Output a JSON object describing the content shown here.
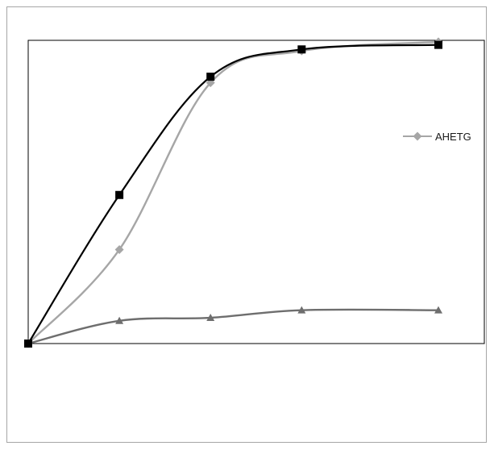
{
  "chart_data": {
    "type": "line",
    "title": "",
    "xlabel": "",
    "ylabel": "",
    "x": [
      0,
      1,
      2,
      3,
      4.5
    ],
    "ylim": [
      0,
      1
    ],
    "smooth": true,
    "grid": false,
    "legend": {
      "placement": "right",
      "entries": [
        "AHETG"
      ]
    },
    "series": [
      {
        "name": "AHETG",
        "marker": "diamond",
        "color": "#a6a6a6",
        "values": [
          0,
          0.31,
          0.86,
          0.965,
          0.995
        ]
      },
      {
        "name": "",
        "marker": "triangle",
        "color": "#6e6e6e",
        "values": [
          0,
          0.075,
          0.085,
          0.11,
          0.11
        ]
      },
      {
        "name": "",
        "marker": "square",
        "color": "#000000",
        "values": [
          0,
          0.49,
          0.88,
          0.97,
          0.985
        ]
      }
    ]
  }
}
